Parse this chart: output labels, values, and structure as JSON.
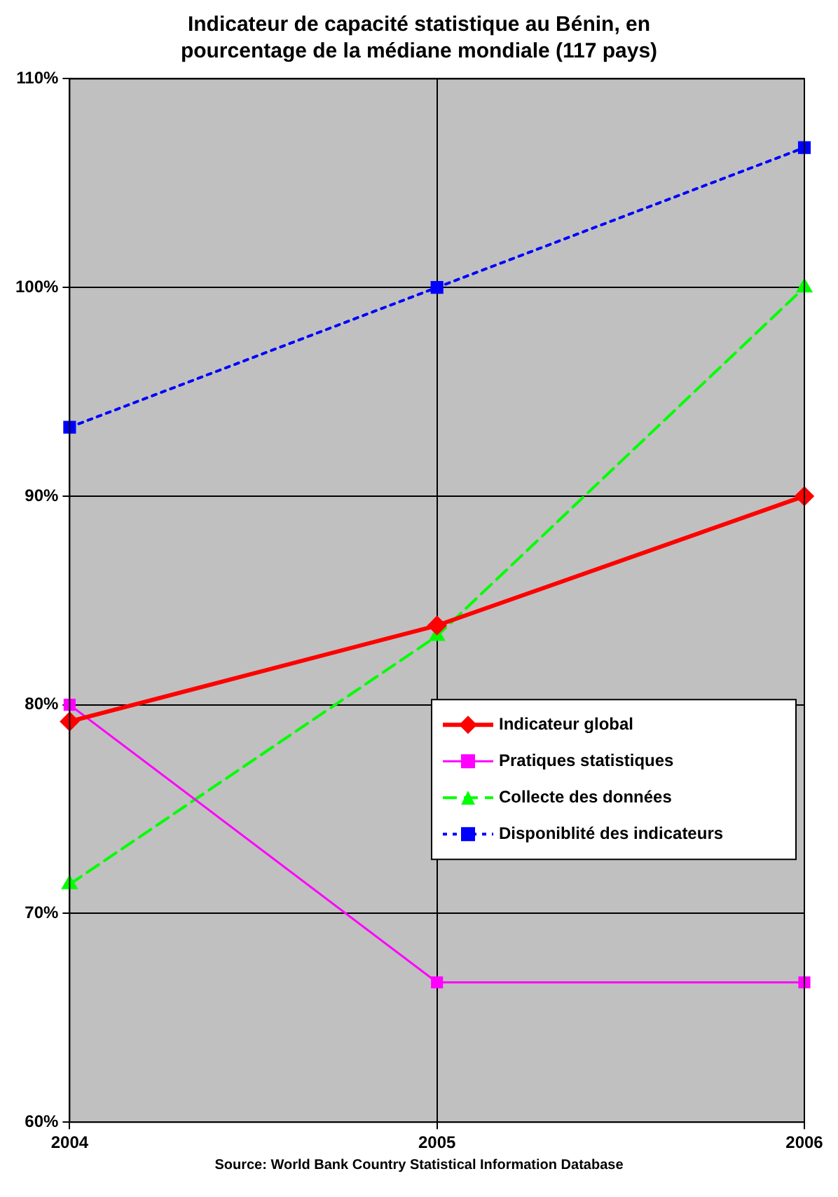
{
  "chart_data": {
    "type": "line",
    "title": "Indicateur de capacité statistique au Bénin, en pourcentage de la médiane mondiale (117 pays)",
    "categories": [
      "2004",
      "2005",
      "2006"
    ],
    "series": [
      {
        "name": "Indicateur global",
        "color": "#ff0000",
        "values": [
          79.2,
          83.8,
          90
        ],
        "marker": "diamond",
        "line_style": "solid"
      },
      {
        "name": "Pratiques statistiques",
        "color": "#ff00ff",
        "values": [
          80,
          66.7,
          66.7
        ],
        "marker": "square",
        "line_style": "solid"
      },
      {
        "name": "Collecte des données",
        "color": "#00ff00",
        "values": [
          71.4,
          83.3,
          100
        ],
        "marker": "triangle",
        "line_style": "dashed"
      },
      {
        "name": "Disponiblité des indicateurs",
        "color": "#0000ff",
        "values": [
          93.3,
          100,
          106.7
        ],
        "marker": "square",
        "line_style": "dotted"
      }
    ],
    "ylim": [
      60,
      110
    ],
    "yticks": [
      {
        "value": 60,
        "label": "60%"
      },
      {
        "value": 70,
        "label": "70%"
      },
      {
        "value": 80,
        "label": "80%"
      },
      {
        "value": 90,
        "label": "90%"
      },
      {
        "value": 100,
        "label": "100%"
      },
      {
        "value": 110,
        "label": "110%"
      }
    ],
    "grid": true,
    "legend": "right",
    "annotations": [
      "Source: World Bank Country Statistical Information Database"
    ]
  }
}
